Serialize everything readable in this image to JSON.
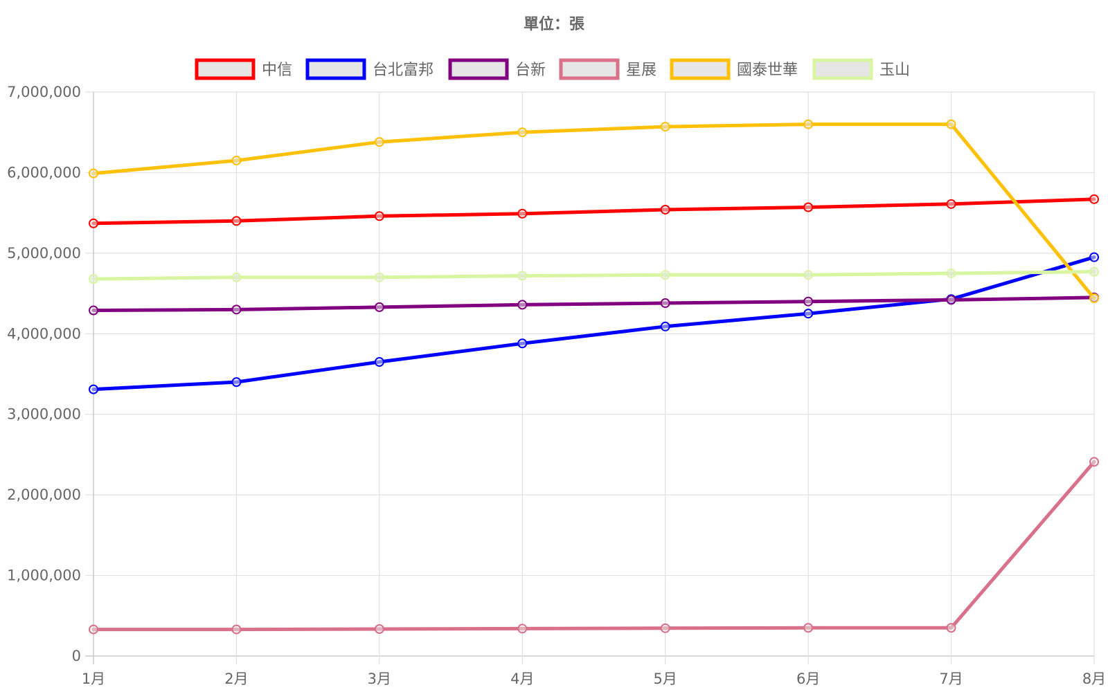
{
  "chart_data": {
    "type": "line",
    "title": "單位：張",
    "categories": [
      "1月",
      "2月",
      "3月",
      "4月",
      "5月",
      "6月",
      "7月",
      "8月"
    ],
    "ylim": [
      0,
      7000000
    ],
    "yticks": [
      0,
      1000000,
      2000000,
      3000000,
      4000000,
      5000000,
      6000000,
      7000000
    ],
    "ytick_labels": [
      "0",
      "1,000,000",
      "2,000,000",
      "3,000,000",
      "4,000,000",
      "5,000,000",
      "6,000,000",
      "7,000,000"
    ],
    "grid": true,
    "legend_position": "top",
    "series": [
      {
        "name": "中信",
        "color": "#ff0000",
        "values": [
          5370000,
          5400000,
          5460000,
          5490000,
          5540000,
          5570000,
          5610000,
          5670000
        ]
      },
      {
        "name": "台北富邦",
        "color": "#0000ff",
        "values": [
          3310000,
          3400000,
          3650000,
          3880000,
          4090000,
          4250000,
          4430000,
          4950000
        ]
      },
      {
        "name": "台新",
        "color": "#800080",
        "values": [
          4290000,
          4300000,
          4330000,
          4360000,
          4380000,
          4400000,
          4420000,
          4450000
        ]
      },
      {
        "name": "星展",
        "color": "#d9718a",
        "values": [
          330000,
          330000,
          335000,
          340000,
          345000,
          350000,
          350000,
          2410000
        ]
      },
      {
        "name": "國泰世華",
        "color": "#ffc107",
        "values": [
          5990000,
          6150000,
          6380000,
          6500000,
          6570000,
          6600000,
          6600000,
          4440000
        ]
      },
      {
        "name": "玉山",
        "color": "#d8f5a2",
        "values": [
          4680000,
          4700000,
          4700000,
          4720000,
          4730000,
          4730000,
          4750000,
          4770000
        ]
      }
    ]
  }
}
